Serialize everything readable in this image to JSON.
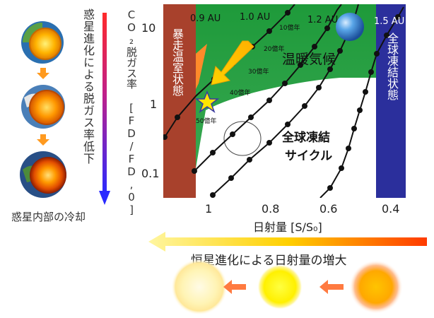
{
  "left_panel": {
    "caption": "惑星内部の冷却",
    "arrow_label": "惑星進化による脱ガス率低下"
  },
  "plot": {
    "ylabel": "CO₂脱ガス率 [FD/FD,0]",
    "xlabel": "日射量 [S/S₀]",
    "y_ticks": [
      "10",
      "1",
      "0.1"
    ],
    "x_ticks": [
      "1",
      "0.8",
      "0.6",
      "0.4"
    ],
    "au_labels": [
      "0.9 AU",
      "1.0 AU",
      "1.2 AU",
      "1.5 AU"
    ],
    "age_labels": [
      "10億年",
      "20億年",
      "30億年",
      "40億年",
      "50億年"
    ],
    "region_runaway": "暴走温室状態",
    "region_warm": "温暖気候",
    "region_cycle_line1": "全球凍結",
    "region_cycle_line2": "サイクル",
    "region_snowball": "全球凍結状態",
    "colors": {
      "runaway": "#a8412c",
      "warm": "#2e9a42",
      "snowball": "#2b2f9c",
      "cycle": "#ffffff"
    }
  },
  "bottom": {
    "arrow_label": "恒星進化による日射量の増大"
  }
}
